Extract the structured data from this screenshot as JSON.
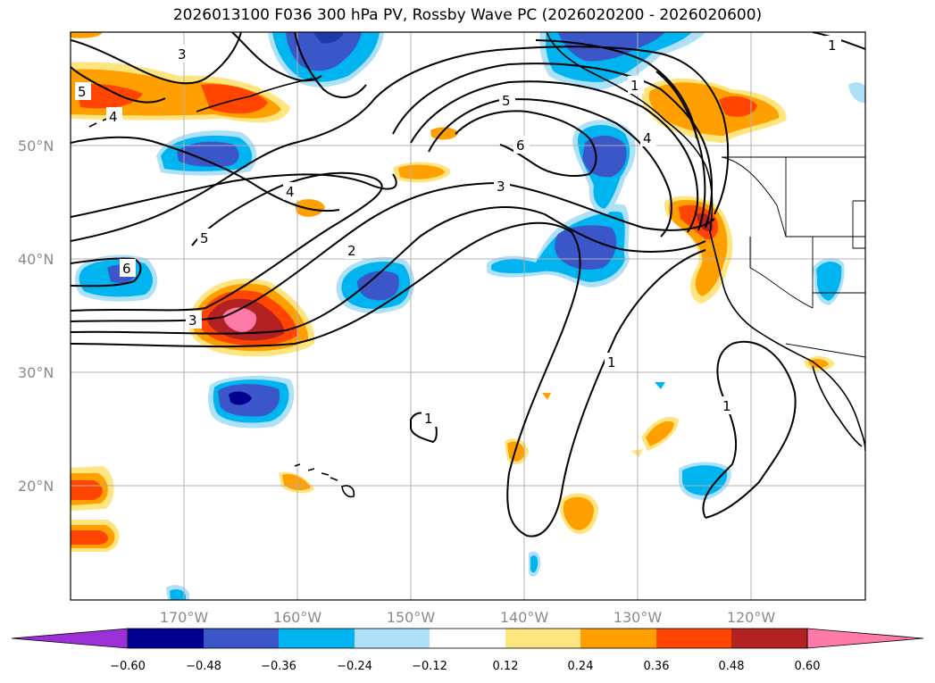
{
  "title": "2026013100 F036 300 hPa PV, Rossby Wave PC (2026020200 - 2026020600)",
  "map": {
    "projection": "PlateCarree",
    "lon_range": [
      -180,
      -110
    ],
    "lat_range": [
      10,
      60
    ],
    "lat_labels": [
      "50°N",
      "40°N",
      "30°N",
      "20°N"
    ],
    "lon_labels": [
      "170°W",
      "160°W",
      "150°W",
      "140°W",
      "130°W",
      "120°W"
    ],
    "gridlines": true
  },
  "contour_labels": [
    "3",
    "5",
    "4",
    "5",
    "6",
    "3",
    "4",
    "2",
    "5",
    "6",
    "3",
    "1",
    "1",
    "1",
    "1",
    "4",
    "1"
  ],
  "colorbar": {
    "ticks": [
      "−0.60",
      "−0.48",
      "−0.36",
      "−0.24",
      "−0.12",
      "0.12",
      "0.24",
      "0.36",
      "0.48",
      "0.60"
    ],
    "colors": [
      "#9b30d6",
      "#000090",
      "#3a56c8",
      "#00b4f0",
      "#aee0f8",
      "#ffffff",
      "#ffe57f",
      "#ffa000",
      "#ff4500",
      "#b22222",
      "#ff7aa8"
    ],
    "extend": "both"
  }
}
